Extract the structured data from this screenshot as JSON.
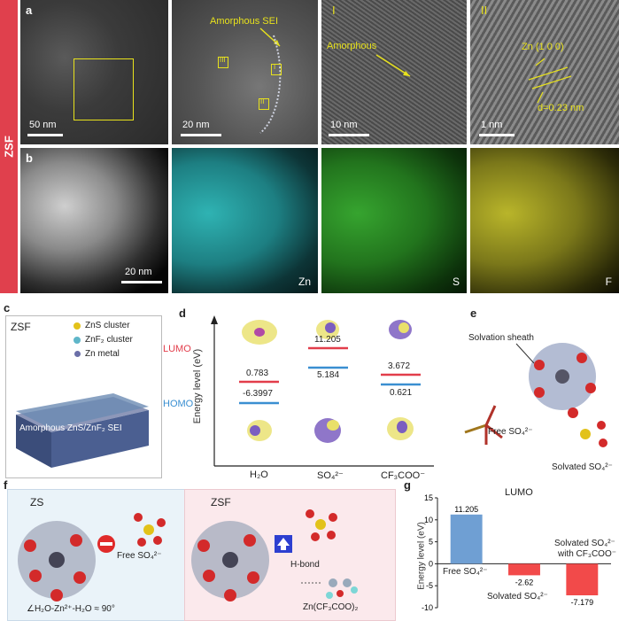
{
  "side_label": "ZSF",
  "row_a": {
    "letter": "a",
    "scale1": "50 nm",
    "scale2": "20 nm",
    "scale3": "10 nm",
    "scale4": "1 nm",
    "amorphous_sei": "Amorphous SEI",
    "roman_I": "I",
    "roman_II": "II",
    "roman_III": "III",
    "amorphous": "Amorphous",
    "zn100": "Zn (1 0 0)",
    "dspacing": "d=0.23 nm"
  },
  "row_b": {
    "letter": "b",
    "scale": "20 nm",
    "zn": "Zn",
    "s": "S",
    "f": "F"
  },
  "panel_c": {
    "letter": "c",
    "title": "ZSF",
    "legend1": "ZnS cluster",
    "legend2": "ZnF₂ cluster",
    "legend3": "Zn metal",
    "sei": "Amorphous ZnS/ZnF₂ SEI"
  },
  "panel_d": {
    "letter": "d",
    "ylabel": "Energy level (eV)",
    "lumo": "LUMO",
    "homo": "HOMO",
    "x_h2o": "H₂O",
    "x_so4": "SO₄²⁻",
    "x_cf3coo": "CF₃COO⁻",
    "v_h2o_lumo": "0.783",
    "v_h2o_homo": "-6.3997",
    "v_so4_lumo": "11.205",
    "v_so4_homo": "5.184",
    "v_cf3_lumo": "3.672",
    "v_cf3_homo": "0.621",
    "lumo_color": "#e23d4b",
    "homo_color": "#3a8fd1"
  },
  "panel_e": {
    "letter": "e",
    "sheath": "Solvation sheath",
    "free": "Free SO₄²⁻",
    "solvated": "Solvated SO₄²⁻"
  },
  "panel_f": {
    "letter": "f",
    "zs": "ZS",
    "zsf": "ZSF",
    "free": "Free SO₄²⁻",
    "angle": "∠H₂O-Zn²⁺-H₂O ≈ 90°",
    "hbond": "H-bond",
    "salt": "Zn(CF₃COO)₂"
  },
  "panel_g": {
    "letter": "g",
    "title": "LUMO",
    "ylabel": "Energy level (eV)",
    "yticks": [
      "15",
      "10",
      "5",
      "0",
      "-5",
      "-10"
    ],
    "free": "Free SO₄²⁻",
    "solvated": "Solvated SO₄²⁻",
    "solvated_cf3_line1": "Solvated SO₄²⁻",
    "solvated_cf3_line2": "with CF₃COO⁻"
  },
  "chart_data": {
    "type": "bar",
    "title": "LUMO",
    "ylabel": "Energy level (eV)",
    "categories": [
      "Free SO₄²⁻",
      "Solvated SO₄²⁻",
      "Solvated SO₄²⁻ with CF₃COO⁻"
    ],
    "values": [
      11.205,
      -2.62,
      -7.179
    ],
    "value_labels": [
      "11.205",
      "-2.62",
      "-7.179"
    ],
    "colors": [
      "#6f9fd3",
      "#f24a4a",
      "#f24a4a"
    ],
    "ylim": [
      -10,
      15
    ]
  }
}
